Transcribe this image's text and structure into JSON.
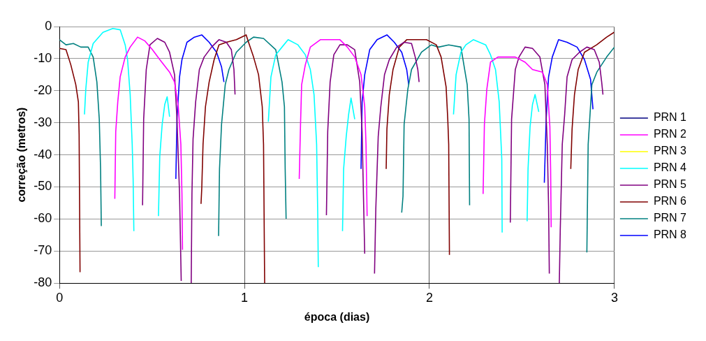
{
  "chart_data": {
    "type": "line",
    "xlabel": "época (dias)",
    "ylabel": "correção (metros)",
    "xlim": [
      0,
      3
    ],
    "xticks": [
      0,
      1,
      2,
      3
    ],
    "ylim": [
      -80,
      0
    ],
    "yticks": [
      -80,
      -70,
      -60,
      -50,
      -40,
      -30,
      -20,
      -10,
      0
    ],
    "grid": true,
    "legend": "right",
    "series": [
      {
        "name": "PRN 1",
        "color": "#000080"
      },
      {
        "name": "PRN 2",
        "color": "#ff00ff",
        "x": [
          0.299,
          0.304,
          0.315,
          0.328,
          0.355,
          0.382,
          0.422,
          0.462,
          0.502,
          0.542,
          0.595,
          0.622,
          0.642,
          0.656,
          0.662,
          0.665,
          0.9,
          1.296,
          1.303,
          1.309,
          1.329,
          1.356,
          1.41,
          1.463,
          1.516,
          1.556,
          1.596,
          1.63,
          1.65,
          1.657,
          1.663,
          1.9,
          2.29,
          2.297,
          2.31,
          2.33,
          2.37,
          2.424,
          2.464,
          2.517,
          2.557,
          2.611,
          2.637,
          2.651,
          2.655,
          2.658
        ],
        "values": [
          -53.7,
          -32.8,
          -23.5,
          -15.7,
          -9.5,
          -6.4,
          -3.3,
          -4.5,
          -7.2,
          -10.3,
          -14.2,
          -17.3,
          -25.0,
          -36.7,
          -52.2,
          -69.6,
          null,
          -47.5,
          -30.5,
          -18.1,
          -11.9,
          -6.4,
          -4.1,
          -4.1,
          -4.1,
          -6.4,
          -9.5,
          -15.0,
          -25.0,
          -36.7,
          -59.1,
          null,
          -52.2,
          -30.5,
          -19.6,
          -11.1,
          -9.5,
          -9.5,
          -9.5,
          -11.1,
          -13.4,
          -14.2,
          -18.1,
          -31.2,
          -44.4,
          -62.6
        ]
      },
      {
        "name": "PRN 3",
        "color": "#ffff00"
      },
      {
        "name": "PRN 4",
        "color": "#00ffff",
        "x": [
          0.135,
          0.142,
          0.155,
          0.182,
          0.235,
          0.288,
          0.328,
          0.355,
          0.368,
          0.382,
          0.393,
          0.398,
          0.402,
          0.45,
          0.535,
          0.542,
          0.555,
          0.569,
          0.582,
          0.595,
          0.8,
          1.129,
          1.143,
          1.169,
          1.203,
          1.236,
          1.289,
          1.329,
          1.356,
          1.376,
          1.39,
          1.396,
          1.399,
          1.45,
          1.53,
          1.536,
          1.55,
          1.563,
          1.576,
          1.596,
          1.8,
          2.13,
          2.144,
          2.17,
          2.197,
          2.237,
          2.304,
          2.33,
          2.357,
          2.377,
          2.391,
          2.393,
          2.45,
          2.528,
          2.533,
          2.544,
          2.557,
          2.571,
          2.591
        ],
        "values": [
          -27.4,
          -19.6,
          -11.1,
          -5.3,
          -1.8,
          -0.6,
          -1.0,
          -5.7,
          -10.3,
          -21.2,
          -36.7,
          -47.5,
          -63.8,
          null,
          -59.1,
          -40.5,
          -30.5,
          -24.3,
          -21.9,
          -28.1,
          null,
          -29.7,
          -15.7,
          -8.8,
          -6.4,
          -4.1,
          -5.7,
          -8.8,
          -13.4,
          -21.2,
          -36.7,
          -58.4,
          -75.0,
          null,
          -63.8,
          -44.4,
          -34.3,
          -27.4,
          -22.3,
          -28.9,
          null,
          -27.4,
          -15.0,
          -8.0,
          -5.7,
          -4.1,
          -5.7,
          -8.8,
          -13.4,
          -23.5,
          -41.3,
          -64.2,
          null,
          -60.7,
          -44.4,
          -31.2,
          -24.3,
          -21.2,
          -26.6
        ]
      },
      {
        "name": "PRN 5",
        "color": "#800080",
        "x": [
          0.449,
          0.455,
          0.469,
          0.489,
          0.529,
          0.569,
          0.595,
          0.622,
          0.635,
          0.649,
          0.658,
          0.7,
          0.712,
          0.716,
          0.722,
          0.736,
          0.756,
          0.782,
          0.822,
          0.862,
          0.902,
          0.929,
          0.943,
          0.949,
          1.2,
          1.443,
          1.45,
          1.463,
          1.483,
          1.516,
          1.556,
          1.596,
          1.623,
          1.636,
          1.643,
          1.65,
          1.68,
          1.703,
          1.71,
          1.723,
          1.737,
          1.757,
          1.783,
          1.823,
          1.863,
          1.903,
          1.923,
          1.937,
          1.944,
          2.2,
          2.437,
          2.444,
          2.464,
          2.484,
          2.517,
          2.557,
          2.597,
          2.624,
          2.637,
          2.644,
          2.648,
          2.68,
          2.702,
          2.707,
          2.718,
          2.731,
          2.744,
          2.771,
          2.811,
          2.851,
          2.891,
          2.918,
          2.931,
          2.938
        ],
        "values": [
          -55.7,
          -28.9,
          -13.4,
          -5.7,
          -3.7,
          -4.9,
          -8.0,
          -15.0,
          -28.9,
          -52.2,
          -79.3,
          null,
          -80,
          -52.2,
          -35.1,
          -23.5,
          -13.4,
          -9.5,
          -6.4,
          -4.1,
          -4.9,
          -7.2,
          -13.4,
          -21.2,
          null,
          -58.8,
          -32.8,
          -17.3,
          -8.8,
          -5.7,
          -5.7,
          -7.2,
          -17.3,
          -32.8,
          -52.2,
          -70.8,
          null,
          -77.0,
          -56.8,
          -34.3,
          -25.0,
          -15.0,
          -10.3,
          -6.4,
          -4.9,
          -5.3,
          -9.5,
          -13.4,
          -17.3,
          null,
          -61.1,
          -28.9,
          -13.4,
          -9.5,
          -6.4,
          -6.8,
          -9.5,
          -18.1,
          -36.7,
          -56.0,
          -77.0,
          null,
          -80,
          -63.8,
          -36.7,
          -27.4,
          -15.7,
          -10.3,
          -8.0,
          -6.4,
          -7.2,
          -11.1,
          -17.3,
          -21.2
        ]
      },
      {
        "name": "PRN 6",
        "color": "#800000",
        "x": [
          0,
          0.035,
          0.061,
          0.088,
          0.102,
          0.106,
          0.111,
          0.2,
          0.765,
          0.769,
          0.776,
          0.789,
          0.809,
          0.836,
          0.862,
          0.902,
          0.956,
          1.009,
          1.022,
          1.049,
          1.076,
          1.096,
          1.103,
          1.109,
          1.4,
          1.766,
          1.77,
          1.783,
          1.803,
          1.837,
          1.877,
          1.93,
          1.984,
          2.037,
          2.063,
          2.09,
          2.099,
          2.104,
          2.108,
          2.4,
          2.764,
          2.771,
          2.784,
          2.804,
          2.838,
          2.904,
          2.958,
          2.998
        ],
        "values": [
          -6.8,
          -7.2,
          -11.9,
          -18.1,
          -23.5,
          -33.6,
          -76.6,
          null,
          -55.3,
          -50.6,
          -36.7,
          -25.0,
          -17.3,
          -10.3,
          -5.7,
          -4.9,
          -4.1,
          -2.6,
          -4.9,
          -9.5,
          -15.0,
          -25.0,
          -36.7,
          -80,
          null,
          -44.4,
          -32.0,
          -21.2,
          -13.4,
          -6.4,
          -4.1,
          -4.1,
          -4.1,
          -5.7,
          -9.5,
          -18.8,
          -28.9,
          -36.7,
          -71.2,
          null,
          -44.4,
          -32.0,
          -21.2,
          -13.4,
          -8.0,
          -5.7,
          -3.3,
          -1.8
        ]
      },
      {
        "name": "PRN 7",
        "color": "#008080",
        "x": [
          0,
          0.035,
          0.075,
          0.115,
          0.155,
          0.182,
          0.202,
          0.215,
          0.222,
          0.226,
          0.5,
          0.86,
          0.865,
          0.876,
          0.896,
          0.916,
          0.956,
          1.009,
          1.049,
          1.103,
          1.169,
          1.203,
          1.216,
          1.22,
          1.225,
          1.5,
          1.85,
          1.857,
          1.863,
          1.883,
          1.903,
          1.957,
          2.01,
          2.05,
          2.104,
          2.17,
          2.204,
          2.214,
          2.217,
          2.5,
          2.851,
          2.858,
          2.878,
          2.905,
          2.958,
          3.0
        ],
        "values": [
          -4.1,
          -5.7,
          -5.3,
          -6.4,
          -6.4,
          -9.5,
          -17.3,
          -28.9,
          -44.4,
          -62.2,
          null,
          -65.3,
          -44.4,
          -30.5,
          -18.1,
          -13.4,
          -8.0,
          -4.9,
          -3.3,
          -3.7,
          -7.2,
          -17.3,
          -25.0,
          -44.4,
          -59.9,
          null,
          -58.0,
          -52.9,
          -30.5,
          -19.6,
          -13.4,
          -8.0,
          -5.7,
          -6.4,
          -5.7,
          -6.4,
          -18.1,
          -28.9,
          -55.7,
          null,
          -70.4,
          -36.7,
          -18.1,
          -14.2,
          -9.5,
          -6.4
        ]
      },
      {
        "name": "PRN 8",
        "color": "#0000ff",
        "x": [
          0.629,
          0.635,
          0.649,
          0.662,
          0.689,
          0.729,
          0.769,
          0.809,
          0.849,
          0.876,
          0.889,
          1.2,
          1.63,
          1.636,
          1.65,
          1.677,
          1.717,
          1.77,
          1.81,
          1.85,
          1.877,
          1.888,
          2.2,
          2.621,
          2.631,
          2.644,
          2.664,
          2.698,
          2.744,
          2.798,
          2.838,
          2.871,
          2.884
        ],
        "values": [
          -47.5,
          -28.9,
          -15.7,
          -10.3,
          -4.9,
          -3.3,
          -2.6,
          -4.9,
          -8.0,
          -12.6,
          -17.3,
          null,
          -44.4,
          -23.5,
          -15.0,
          -7.2,
          -4.1,
          -2.6,
          -4.9,
          -8.0,
          -13.4,
          -18.1,
          null,
          -48.7,
          -28.9,
          -15.7,
          -9.5,
          -4.1,
          -4.9,
          -6.4,
          -10.3,
          -16.5,
          -25.8
        ]
      }
    ]
  }
}
